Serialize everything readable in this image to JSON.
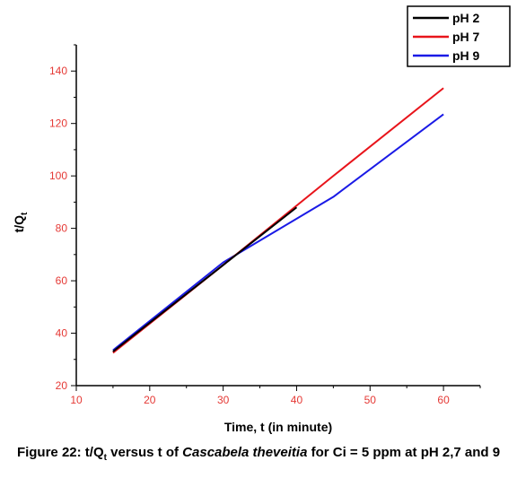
{
  "chart_data": {
    "type": "line",
    "xlabel": "Time, t (in minute)",
    "ylabel": {
      "main": "t/Q",
      "sub": "t"
    },
    "xlim": [
      10,
      65
    ],
    "ylim": [
      20,
      150
    ],
    "xticks": [
      10,
      20,
      30,
      40,
      50,
      60
    ],
    "yticks": [
      20,
      40,
      60,
      80,
      100,
      120,
      140
    ],
    "grid": false,
    "legend_position": "top-right",
    "series": [
      {
        "name": "pH 2",
        "color": "#000000",
        "x": [
          15,
          30,
          40
        ],
        "y": [
          33,
          66,
          88
        ]
      },
      {
        "name": "pH 7",
        "color": "#e8141b",
        "x": [
          15,
          30,
          45,
          60
        ],
        "y": [
          32.5,
          66,
          100,
          133.5
        ]
      },
      {
        "name": "pH 9",
        "color": "#1a1ae6",
        "x": [
          15,
          30,
          45,
          60
        ],
        "y": [
          33.5,
          67,
          92,
          123.5
        ]
      }
    ]
  },
  "caption": {
    "prefix": "Figure 22: t/Q",
    "sub": "t",
    "middle": " versus t of ",
    "italic": "Cascabela theveitia",
    "suffix": " for Ci = 5 ppm at pH 2,7 and 9"
  }
}
